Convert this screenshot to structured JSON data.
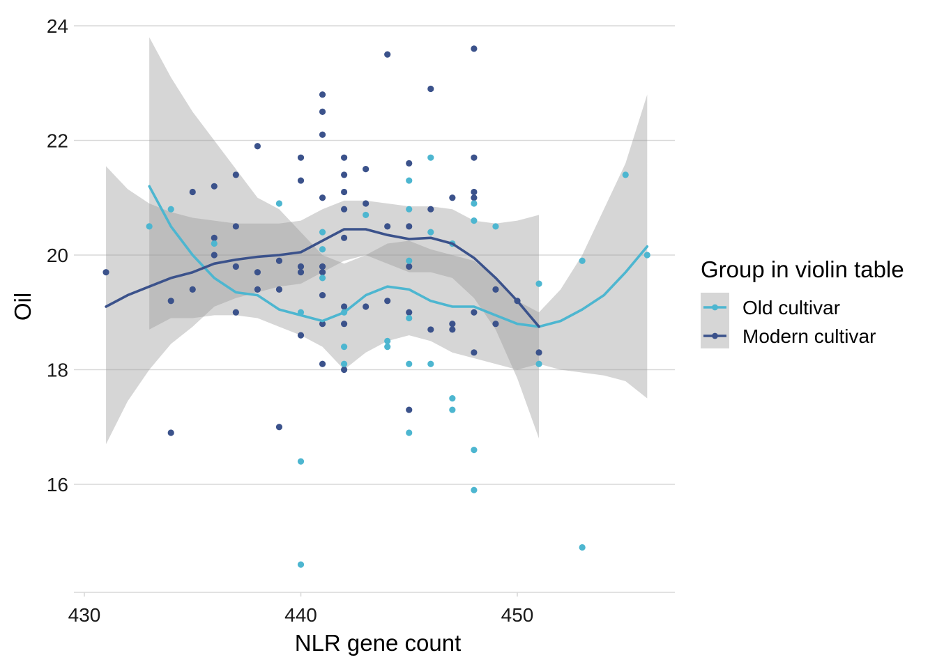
{
  "chart_data": {
    "type": "scatter",
    "xlabel": "NLR gene count",
    "ylabel": "Oil",
    "xlim": [
      430,
      457
    ],
    "ylim": [
      14.1,
      24.4
    ],
    "x_ticks": [
      430,
      440,
      450
    ],
    "y_ticks": [
      16,
      18,
      20,
      22,
      24
    ],
    "grid": "horizontal",
    "legend_position": "right",
    "legend_title": "Group in violin table",
    "series": [
      {
        "name": "Old cultivar",
        "color": "#4db6d0",
        "points": [
          [
            433,
            20.5
          ],
          [
            434,
            20.8
          ],
          [
            436,
            20.2
          ],
          [
            439,
            20.9
          ],
          [
            440,
            19.0
          ],
          [
            440,
            16.4
          ],
          [
            440,
            14.6
          ],
          [
            441,
            20.4
          ],
          [
            441,
            20.1
          ],
          [
            441,
            19.6
          ],
          [
            442,
            19.0
          ],
          [
            442,
            18.4
          ],
          [
            442,
            18.1
          ],
          [
            443,
            20.7
          ],
          [
            444,
            18.5
          ],
          [
            444,
            18.4
          ],
          [
            445,
            21.3
          ],
          [
            445,
            20.8
          ],
          [
            445,
            19.9
          ],
          [
            445,
            18.9
          ],
          [
            445,
            18.1
          ],
          [
            445,
            16.9
          ],
          [
            446,
            21.7
          ],
          [
            446,
            20.4
          ],
          [
            446,
            18.1
          ],
          [
            447,
            20.2
          ],
          [
            447,
            17.5
          ],
          [
            447,
            17.3
          ],
          [
            448,
            20.9
          ],
          [
            448,
            20.6
          ],
          [
            448,
            16.6
          ],
          [
            448,
            15.9
          ],
          [
            449,
            20.5
          ],
          [
            451,
            19.5
          ],
          [
            451,
            18.1
          ],
          [
            453,
            19.9
          ],
          [
            453,
            14.9
          ],
          [
            455,
            21.4
          ],
          [
            456,
            20.0
          ]
        ],
        "smooth": [
          [
            433,
            21.2
          ],
          [
            434,
            20.5
          ],
          [
            435,
            20.0
          ],
          [
            436,
            19.6
          ],
          [
            437,
            19.35
          ],
          [
            438,
            19.3
          ],
          [
            439,
            19.05
          ],
          [
            440,
            18.95
          ],
          [
            441,
            18.85
          ],
          [
            442,
            19.0
          ],
          [
            443,
            19.3
          ],
          [
            444,
            19.45
          ],
          [
            445,
            19.4
          ],
          [
            446,
            19.2
          ],
          [
            447,
            19.1
          ],
          [
            448,
            19.1
          ],
          [
            449,
            18.95
          ],
          [
            450,
            18.8
          ],
          [
            451,
            18.75
          ],
          [
            452,
            18.85
          ],
          [
            453,
            19.05
          ],
          [
            454,
            19.3
          ],
          [
            455,
            19.7
          ],
          [
            456,
            20.15
          ]
        ],
        "band_upper": [
          [
            433,
            23.8
          ],
          [
            434,
            23.1
          ],
          [
            435,
            22.5
          ],
          [
            436,
            22.0
          ],
          [
            437,
            21.5
          ],
          [
            438,
            21.0
          ],
          [
            439,
            20.8
          ],
          [
            440,
            20.4
          ],
          [
            441,
            20.0
          ],
          [
            442,
            19.85
          ],
          [
            443,
            20.0
          ],
          [
            444,
            20.2
          ],
          [
            445,
            20.25
          ],
          [
            446,
            20.1
          ],
          [
            447,
            20.0
          ],
          [
            448,
            19.9
          ],
          [
            449,
            19.6
          ],
          [
            450,
            19.2
          ],
          [
            451,
            19.0
          ],
          [
            452,
            19.4
          ],
          [
            453,
            20.0
          ],
          [
            454,
            20.8
          ],
          [
            455,
            21.6
          ],
          [
            456,
            22.8
          ]
        ],
        "band_lower": [
          [
            433,
            18.7
          ],
          [
            434,
            18.9
          ],
          [
            435,
            18.9
          ],
          [
            436,
            18.95
          ],
          [
            437,
            18.95
          ],
          [
            438,
            18.9
          ],
          [
            439,
            18.75
          ],
          [
            440,
            18.6
          ],
          [
            441,
            18.4
          ],
          [
            442,
            18.0
          ],
          [
            443,
            18.3
          ],
          [
            444,
            18.5
          ],
          [
            445,
            18.6
          ],
          [
            446,
            18.5
          ],
          [
            447,
            18.3
          ],
          [
            448,
            18.2
          ],
          [
            449,
            18.1
          ],
          [
            450,
            18.0
          ],
          [
            451,
            18.1
          ],
          [
            452,
            18.0
          ],
          [
            453,
            17.95
          ],
          [
            454,
            17.9
          ],
          [
            455,
            17.8
          ],
          [
            456,
            17.5
          ]
        ]
      },
      {
        "name": "Modern cultivar",
        "color": "#3b528b",
        "points": [
          [
            431,
            19.7
          ],
          [
            434,
            19.2
          ],
          [
            434,
            16.9
          ],
          [
            435,
            21.1
          ],
          [
            435,
            19.4
          ],
          [
            436,
            21.2
          ],
          [
            436,
            20.3
          ],
          [
            436,
            20.0
          ],
          [
            437,
            21.4
          ],
          [
            437,
            20.5
          ],
          [
            437,
            19.8
          ],
          [
            437,
            19.0
          ],
          [
            438,
            21.9
          ],
          [
            438,
            19.7
          ],
          [
            438,
            19.4
          ],
          [
            439,
            19.9
          ],
          [
            439,
            19.4
          ],
          [
            439,
            17.0
          ],
          [
            440,
            21.7
          ],
          [
            440,
            21.3
          ],
          [
            440,
            19.8
          ],
          [
            440,
            19.7
          ],
          [
            440,
            18.6
          ],
          [
            441,
            22.8
          ],
          [
            441,
            22.5
          ],
          [
            441,
            22.1
          ],
          [
            441,
            21.0
          ],
          [
            441,
            19.8
          ],
          [
            441,
            19.7
          ],
          [
            441,
            19.3
          ],
          [
            441,
            18.8
          ],
          [
            441,
            18.1
          ],
          [
            442,
            21.7
          ],
          [
            442,
            21.4
          ],
          [
            442,
            21.1
          ],
          [
            442,
            20.8
          ],
          [
            442,
            20.3
          ],
          [
            442,
            19.1
          ],
          [
            442,
            18.8
          ],
          [
            442,
            18.0
          ],
          [
            443,
            21.5
          ],
          [
            443,
            20.9
          ],
          [
            443,
            19.1
          ],
          [
            444,
            23.5
          ],
          [
            444,
            20.5
          ],
          [
            444,
            19.2
          ],
          [
            445,
            21.6
          ],
          [
            445,
            20.5
          ],
          [
            445,
            19.8
          ],
          [
            445,
            19.0
          ],
          [
            445,
            17.3
          ],
          [
            446,
            22.9
          ],
          [
            446,
            20.8
          ],
          [
            446,
            18.7
          ],
          [
            447,
            21.0
          ],
          [
            447,
            18.8
          ],
          [
            447,
            18.7
          ],
          [
            448,
            23.6
          ],
          [
            448,
            21.7
          ],
          [
            448,
            21.1
          ],
          [
            448,
            21.0
          ],
          [
            448,
            19.0
          ],
          [
            448,
            18.3
          ],
          [
            449,
            19.4
          ],
          [
            449,
            18.8
          ],
          [
            450,
            19.2
          ],
          [
            451,
            18.3
          ]
        ],
        "smooth": [
          [
            431,
            19.1
          ],
          [
            432,
            19.3
          ],
          [
            433,
            19.45
          ],
          [
            434,
            19.6
          ],
          [
            435,
            19.7
          ],
          [
            436,
            19.85
          ],
          [
            437,
            19.92
          ],
          [
            438,
            19.97
          ],
          [
            439,
            20.0
          ],
          [
            440,
            20.05
          ],
          [
            441,
            20.25
          ],
          [
            442,
            20.45
          ],
          [
            443,
            20.45
          ],
          [
            444,
            20.35
          ],
          [
            445,
            20.28
          ],
          [
            446,
            20.3
          ],
          [
            447,
            20.2
          ],
          [
            448,
            19.95
          ],
          [
            449,
            19.6
          ],
          [
            450,
            19.2
          ],
          [
            451,
            18.75
          ]
        ],
        "band_upper": [
          [
            431,
            21.55
          ],
          [
            432,
            21.15
          ],
          [
            433,
            20.9
          ],
          [
            434,
            20.75
          ],
          [
            435,
            20.65
          ],
          [
            436,
            20.6
          ],
          [
            437,
            20.55
          ],
          [
            438,
            20.55
          ],
          [
            439,
            20.55
          ],
          [
            440,
            20.6
          ],
          [
            441,
            20.8
          ],
          [
            442,
            20.95
          ],
          [
            443,
            20.95
          ],
          [
            444,
            20.9
          ],
          [
            445,
            20.85
          ],
          [
            446,
            20.85
          ],
          [
            447,
            20.8
          ],
          [
            448,
            20.6
          ],
          [
            449,
            20.55
          ],
          [
            450,
            20.6
          ],
          [
            451,
            20.7
          ]
        ],
        "band_lower": [
          [
            431,
            16.7
          ],
          [
            432,
            17.45
          ],
          [
            433,
            18.0
          ],
          [
            434,
            18.45
          ],
          [
            435,
            18.75
          ],
          [
            436,
            19.1
          ],
          [
            437,
            19.25
          ],
          [
            438,
            19.35
          ],
          [
            439,
            19.45
          ],
          [
            440,
            19.5
          ],
          [
            441,
            19.7
          ],
          [
            442,
            19.9
          ],
          [
            443,
            20.0
          ],
          [
            444,
            19.85
          ],
          [
            445,
            19.7
          ],
          [
            446,
            19.7
          ],
          [
            447,
            19.6
          ],
          [
            448,
            19.25
          ],
          [
            449,
            18.7
          ],
          [
            450,
            17.85
          ],
          [
            451,
            16.8
          ]
        ]
      }
    ]
  },
  "colors": {
    "grid": "#d9d9d9",
    "band": "#999999",
    "band_opacity": 0.4,
    "legend_key_bg": "#d6d6d6"
  }
}
